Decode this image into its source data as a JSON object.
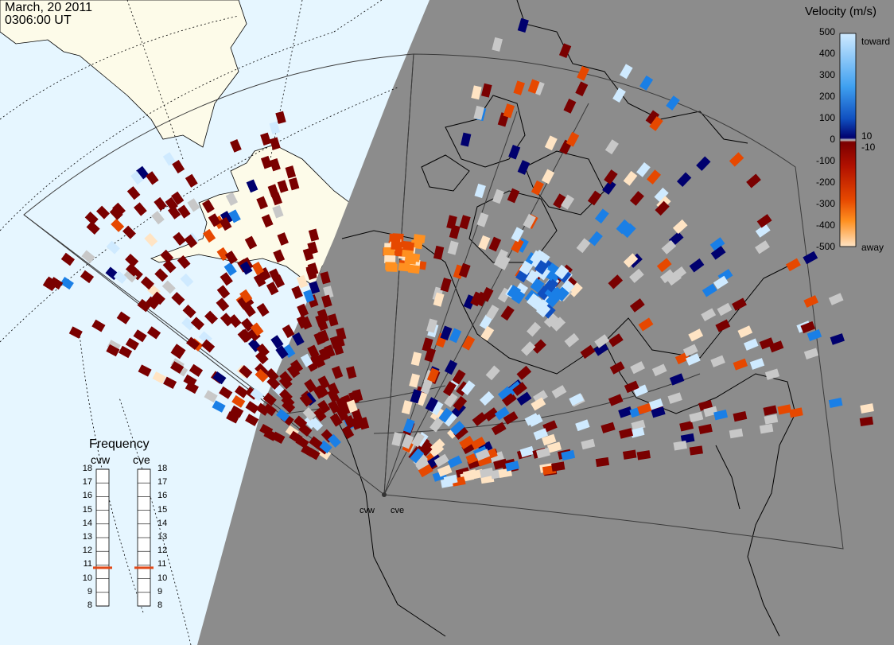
{
  "header": {
    "date": "March, 20 2011",
    "time": "0306:00 UT"
  },
  "colorbar": {
    "title": "Velocity (m/s)",
    "ticks": [
      "500",
      "400",
      "300",
      "200",
      "100",
      "10",
      "0",
      "-10",
      "-100",
      "-200",
      "-300",
      "-400",
      "-500"
    ],
    "toward_label": "toward",
    "away_label": "away",
    "colors": {
      "toward_max": "#cfeaff",
      "toward_mid": "#1a7fe6",
      "toward_min": "#00006e",
      "zero": "#bfbfbf",
      "away_min": "#7a0000",
      "away_mid": "#e64800",
      "away_max": "#ffe4c4"
    }
  },
  "frequency": {
    "title": "Frequency",
    "radars": [
      "cvw",
      "cve"
    ],
    "ticks": [
      "18",
      "17",
      "16",
      "15",
      "14",
      "13",
      "12",
      "11",
      "10",
      "9",
      "8"
    ],
    "cvw_value": 10.8,
    "cve_value": 10.8,
    "range": [
      8,
      18
    ],
    "marker_color": "#e04a1a"
  },
  "sites": {
    "cvw": "cvw",
    "cve": "cve"
  },
  "map_colors": {
    "ocean_day": "#e6f6ff",
    "land_day": "#fdfbe9",
    "night": "#8c8c8c",
    "coast": "#000000",
    "ground_scatter": "#c8c8c8"
  }
}
